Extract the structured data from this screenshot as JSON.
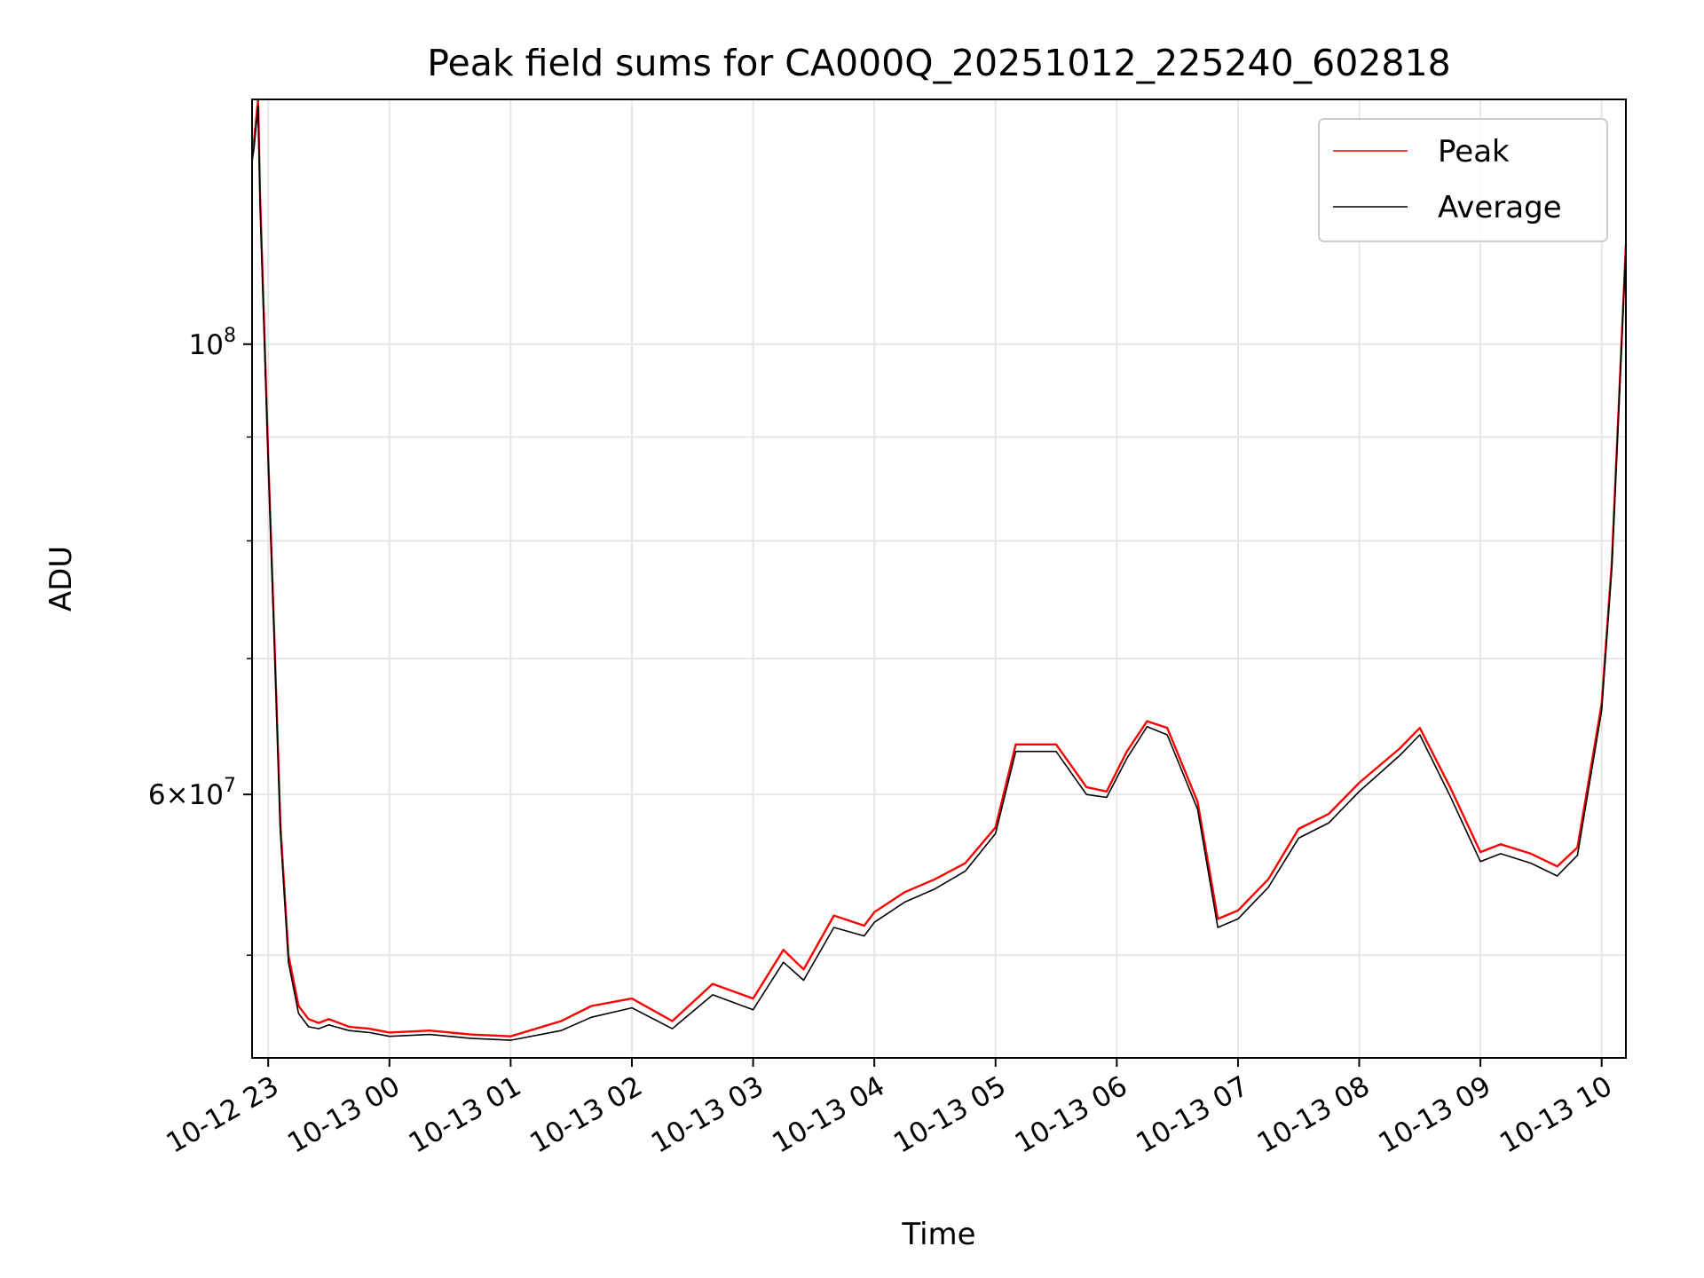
{
  "chart_data": {
    "type": "line",
    "title": "Peak field sums for CA000Q_20251012_225240_602818",
    "xlabel": "Time",
    "ylabel": "ADU",
    "y_scale": "log",
    "ylim": [
      44500000,
      132000000
    ],
    "xlim": [
      "2025-10-12 22:52",
      "2025-10-13 10:12"
    ],
    "x_ticks": [
      {
        "value": "2025-10-12 23:00",
        "label": "10-12 23"
      },
      {
        "value": "2025-10-13 00:00",
        "label": "10-13 00"
      },
      {
        "value": "2025-10-13 01:00",
        "label": "10-13 01"
      },
      {
        "value": "2025-10-13 02:00",
        "label": "10-13 02"
      },
      {
        "value": "2025-10-13 03:00",
        "label": "10-13 03"
      },
      {
        "value": "2025-10-13 04:00",
        "label": "10-13 04"
      },
      {
        "value": "2025-10-13 05:00",
        "label": "10-13 05"
      },
      {
        "value": "2025-10-13 06:00",
        "label": "10-13 06"
      },
      {
        "value": "2025-10-13 07:00",
        "label": "10-13 07"
      },
      {
        "value": "2025-10-13 08:00",
        "label": "10-13 08"
      },
      {
        "value": "2025-10-13 09:00",
        "label": "10-13 09"
      },
      {
        "value": "2025-10-13 10:00",
        "label": "10-13 10"
      }
    ],
    "y_major_ticks": [
      {
        "value": 60000000,
        "label_base": "6×10",
        "label_exp": "7"
      },
      {
        "value": 100000000,
        "label_base": "10",
        "label_exp": "8"
      }
    ],
    "y_minor_ticks": [
      50000000,
      70000000,
      80000000,
      90000000
    ],
    "grid": true,
    "legend": {
      "position": "top-right"
    },
    "series": [
      {
        "name": "Peak",
        "color": "#ff0000",
        "x": [
          "2025-10-12 22:52",
          "2025-10-12 22:53",
          "2025-10-12 22:55",
          "2025-10-12 22:56",
          "2025-10-12 22:58",
          "2025-10-12 23:00",
          "2025-10-12 23:03",
          "2025-10-12 23:06",
          "2025-10-12 23:10",
          "2025-10-12 23:15",
          "2025-10-12 23:20",
          "2025-10-12 23:25",
          "2025-10-12 23:30",
          "2025-10-12 23:40",
          "2025-10-12 23:50",
          "2025-10-13 00:00",
          "2025-10-13 00:20",
          "2025-10-13 00:40",
          "2025-10-13 01:00",
          "2025-10-13 01:25",
          "2025-10-13 01:40",
          "2025-10-13 02:00",
          "2025-10-13 02:20",
          "2025-10-13 02:40",
          "2025-10-13 03:00",
          "2025-10-13 03:15",
          "2025-10-13 03:25",
          "2025-10-13 03:40",
          "2025-10-13 03:55",
          "2025-10-13 04:00",
          "2025-10-13 04:15",
          "2025-10-13 04:30",
          "2025-10-13 04:45",
          "2025-10-13 05:00",
          "2025-10-13 05:10",
          "2025-10-13 05:30",
          "2025-10-13 05:45",
          "2025-10-13 05:55",
          "2025-10-13 06:05",
          "2025-10-13 06:15",
          "2025-10-13 06:25",
          "2025-10-13 06:40",
          "2025-10-13 06:50",
          "2025-10-13 07:00",
          "2025-10-13 07:15",
          "2025-10-13 07:30",
          "2025-10-13 07:45",
          "2025-10-13 08:00",
          "2025-10-13 08:20",
          "2025-10-13 08:30",
          "2025-10-13 08:45",
          "2025-10-13 09:00",
          "2025-10-13 09:10",
          "2025-10-13 09:25",
          "2025-10-13 09:38",
          "2025-10-13 09:48",
          "2025-10-13 10:00",
          "2025-10-13 10:05",
          "2025-10-13 10:12"
        ],
        "values": [
          124000000,
          126000000,
          132000000,
          118000000,
          102000000,
          88000000,
          72000000,
          58000000,
          50000000,
          47200000,
          46500000,
          46300000,
          46500000,
          46100000,
          46000000,
          45800000,
          45900000,
          45700000,
          45600000,
          46400000,
          47200000,
          47600000,
          46400000,
          48400000,
          47600000,
          50300000,
          49200000,
          52300000,
          51700000,
          52500000,
          53700000,
          54500000,
          55500000,
          57800000,
          63500000,
          63500000,
          60500000,
          60200000,
          63000000,
          65200000,
          64700000,
          59500000,
          52100000,
          52600000,
          54500000,
          57700000,
          58700000,
          60800000,
          63200000,
          64700000,
          60500000,
          56200000,
          56700000,
          56100000,
          55300000,
          56500000,
          66500000,
          78000000,
          112000000
        ]
      },
      {
        "name": "Average",
        "color": "#000000",
        "x": [
          "2025-10-12 22:52",
          "2025-10-12 22:53",
          "2025-10-12 22:55",
          "2025-10-12 22:56",
          "2025-10-12 22:58",
          "2025-10-12 23:00",
          "2025-10-12 23:03",
          "2025-10-12 23:06",
          "2025-10-12 23:10",
          "2025-10-12 23:15",
          "2025-10-12 23:20",
          "2025-10-12 23:25",
          "2025-10-12 23:30",
          "2025-10-12 23:40",
          "2025-10-12 23:50",
          "2025-10-13 00:00",
          "2025-10-13 00:20",
          "2025-10-13 00:40",
          "2025-10-13 01:00",
          "2025-10-13 01:25",
          "2025-10-13 01:40",
          "2025-10-13 02:00",
          "2025-10-13 02:20",
          "2025-10-13 02:40",
          "2025-10-13 03:00",
          "2025-10-13 03:15",
          "2025-10-13 03:25",
          "2025-10-13 03:40",
          "2025-10-13 03:55",
          "2025-10-13 04:00",
          "2025-10-13 04:15",
          "2025-10-13 04:30",
          "2025-10-13 04:45",
          "2025-10-13 05:00",
          "2025-10-13 05:10",
          "2025-10-13 05:30",
          "2025-10-13 05:45",
          "2025-10-13 05:55",
          "2025-10-13 06:05",
          "2025-10-13 06:15",
          "2025-10-13 06:25",
          "2025-10-13 06:40",
          "2025-10-13 06:50",
          "2025-10-13 07:00",
          "2025-10-13 07:15",
          "2025-10-13 07:30",
          "2025-10-13 07:45",
          "2025-10-13 08:00",
          "2025-10-13 08:20",
          "2025-10-13 08:30",
          "2025-10-13 08:45",
          "2025-10-13 09:00",
          "2025-10-13 09:10",
          "2025-10-13 09:25",
          "2025-10-13 09:38",
          "2025-10-13 09:48",
          "2025-10-13 10:00",
          "2025-10-13 10:05",
          "2025-10-13 10:12"
        ],
        "values": [
          123000000,
          125000000,
          131000000,
          117000000,
          101000000,
          87500000,
          71500000,
          57500000,
          49600000,
          46800000,
          46100000,
          46000000,
          46200000,
          45900000,
          45800000,
          45600000,
          45700000,
          45500000,
          45400000,
          45900000,
          46600000,
          47100000,
          46000000,
          47800000,
          47000000,
          49600000,
          48600000,
          51600000,
          51100000,
          51900000,
          53100000,
          53900000,
          55000000,
          57400000,
          63000000,
          63000000,
          60000000,
          59800000,
          62500000,
          64800000,
          64200000,
          59000000,
          51600000,
          52100000,
          54000000,
          57100000,
          58100000,
          60200000,
          62700000,
          64200000,
          59900000,
          55600000,
          56100000,
          55500000,
          54700000,
          56000000,
          66000000,
          77500000,
          111500000
        ]
      }
    ]
  }
}
